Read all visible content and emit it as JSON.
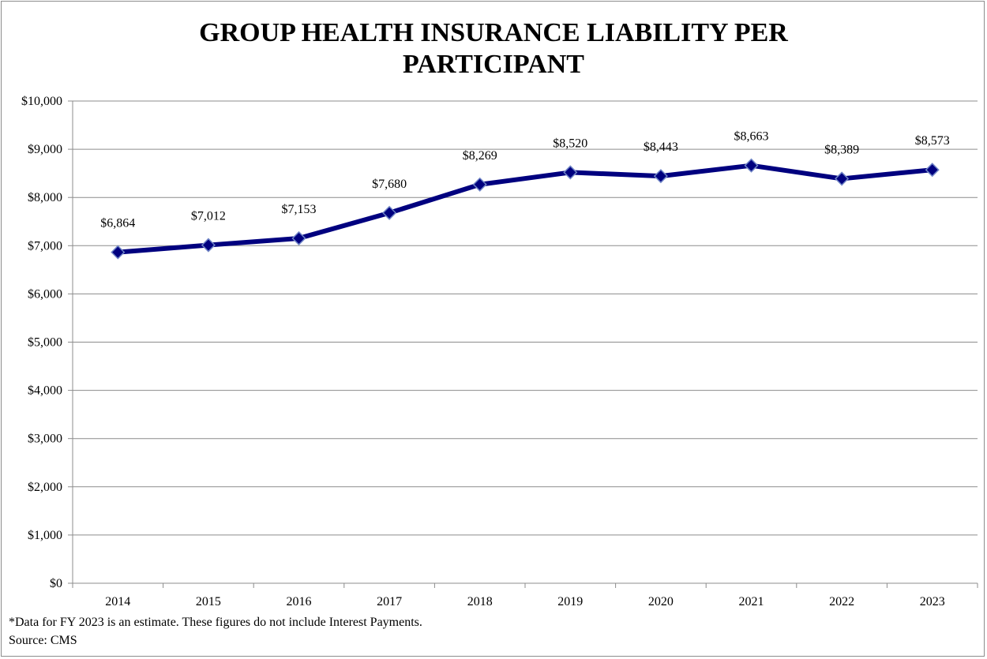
{
  "title_line1": "GROUP HEALTH INSURANCE LIABILITY PER",
  "title_line2": "PARTICIPANT",
  "footnote": "*Data for FY 2023 is an estimate. These figures do not include Interest Payments.",
  "source": "Source: CMS",
  "colors": {
    "line": "#00007f",
    "marker": "#00007f",
    "gridline": "#8c8c8c"
  },
  "chart_data": {
    "type": "line",
    "categories": [
      "2014",
      "2015",
      "2016",
      "2017",
      "2018",
      "2019",
      "2020",
      "2021",
      "2022",
      "2023"
    ],
    "series": [
      {
        "values": [
          6864,
          7012,
          7153,
          7680,
          8269,
          8520,
          8443,
          8663,
          8389,
          8573
        ],
        "data_labels": [
          "$6,864",
          "$7,012",
          "$7,153",
          "$7,680",
          "$8,269",
          "$8,520",
          "$8,443",
          "$8,663",
          "$8,389",
          "$8,573"
        ],
        "marker": "diamond"
      }
    ],
    "ylim": [
      0,
      10000
    ],
    "y_ticks": [
      0,
      1000,
      2000,
      3000,
      4000,
      5000,
      6000,
      7000,
      8000,
      9000,
      10000
    ],
    "y_tick_labels": [
      "$0",
      "$1,000",
      "$2,000",
      "$3,000",
      "$4,000",
      "$5,000",
      "$6,000",
      "$7,000",
      "$8,000",
      "$9,000",
      "$10,000"
    ],
    "grid": true,
    "legend": "none"
  }
}
